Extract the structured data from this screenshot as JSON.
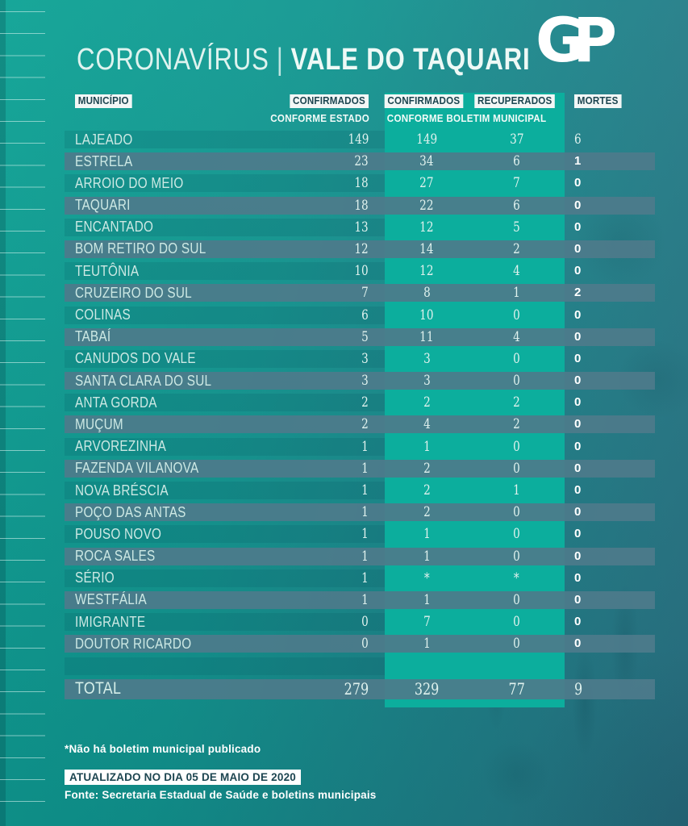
{
  "title": {
    "part1": "CORONAVÍRUS",
    "separator": "|",
    "part2": "VALE DO TAQUARI"
  },
  "logo": {
    "text": "GP"
  },
  "table": {
    "headers": {
      "municipio": "MUNICÍPIO",
      "estado_confirmados": "CONFIRMADOS",
      "estado_sub": "CONFORME ESTADO",
      "municipal_confirmados": "CONFIRMADOS",
      "municipal_recuperados": "RECUPERADOS",
      "municipal_sub": "CONFORME BOLETIM MUNICIPAL",
      "mortes": "MORTES"
    }
  },
  "chart_data": {
    "type": "table",
    "title": "CORONAVÍRUS | VALE DO TAQUARI",
    "columns": [
      "MUNICÍPIO",
      "CONFIRMADOS CONFORME ESTADO",
      "CONFIRMADOS CONFORME BOLETIM MUNICIPAL",
      "RECUPERADOS CONFORME BOLETIM MUNICIPAL",
      "MORTES"
    ],
    "rows": [
      {
        "municipio": "LAJEADO",
        "estado": "149",
        "confirmados": "149",
        "recuperados": "37",
        "mortes": "6",
        "mortes_style": "thin"
      },
      {
        "municipio": "ESTRELA",
        "estado": "23",
        "confirmados": "34",
        "recuperados": "6",
        "mortes": "1"
      },
      {
        "municipio": "ARROIO DO MEIO",
        "estado": "18",
        "confirmados": "27",
        "recuperados": "7",
        "mortes": "0"
      },
      {
        "municipio": "TAQUARI",
        "estado": "18",
        "confirmados": "22",
        "recuperados": "6",
        "mortes": "0"
      },
      {
        "municipio": "ENCANTADO",
        "estado": "13",
        "confirmados": "12",
        "recuperados": "5",
        "mortes": "0"
      },
      {
        "municipio": "BOM RETIRO DO SUL",
        "estado": "12",
        "confirmados": "14",
        "recuperados": "2",
        "mortes": "0"
      },
      {
        "municipio": "TEUTÔNIA",
        "estado": "10",
        "confirmados": "12",
        "recuperados": "4",
        "mortes": "0"
      },
      {
        "municipio": "CRUZEIRO DO SUL",
        "estado": "7",
        "confirmados": "8",
        "recuperados": "1",
        "mortes": "2"
      },
      {
        "municipio": "COLINAS",
        "estado": "6",
        "confirmados": "10",
        "recuperados": "0",
        "mortes": "0"
      },
      {
        "municipio": "TABAÍ",
        "estado": "5",
        "confirmados": "11",
        "recuperados": "4",
        "mortes": "0"
      },
      {
        "municipio": "CANUDOS DO VALE",
        "estado": "3",
        "confirmados": "3",
        "recuperados": "0",
        "mortes": "0"
      },
      {
        "municipio": "SANTA CLARA DO SUL",
        "estado": "3",
        "confirmados": "3",
        "recuperados": "0",
        "mortes": "0"
      },
      {
        "municipio": "ANTA GORDA",
        "estado": "2",
        "confirmados": "2",
        "recuperados": "2",
        "mortes": "0"
      },
      {
        "municipio": "MUÇUM",
        "estado": "2",
        "confirmados": "4",
        "recuperados": "2",
        "mortes": "0"
      },
      {
        "municipio": "ARVOREZINHA",
        "estado": "1",
        "confirmados": "1",
        "recuperados": "0",
        "mortes": "0"
      },
      {
        "municipio": "FAZENDA VILANOVA",
        "estado": "1",
        "confirmados": "2",
        "recuperados": "0",
        "mortes": "0"
      },
      {
        "municipio": "NOVA BRÉSCIA",
        "estado": "1",
        "confirmados": "2",
        "recuperados": "1",
        "mortes": "0"
      },
      {
        "municipio": "POÇO DAS ANTAS",
        "estado": "1",
        "confirmados": "2",
        "recuperados": "0",
        "mortes": "0"
      },
      {
        "municipio": "POUSO NOVO",
        "estado": "1",
        "confirmados": "1",
        "recuperados": "0",
        "mortes": "0"
      },
      {
        "municipio": "ROCA SALES",
        "estado": "1",
        "confirmados": "1",
        "recuperados": "0",
        "mortes": "0"
      },
      {
        "municipio": "SÉRIO",
        "estado": "1",
        "confirmados": "*",
        "recuperados": "*",
        "mortes": "0"
      },
      {
        "municipio": "WESTFÁLIA",
        "estado": "1",
        "confirmados": "1",
        "recuperados": "0",
        "mortes": "0"
      },
      {
        "municipio": "IMIGRANTE",
        "estado": "0",
        "confirmados": "7",
        "recuperados": "0",
        "mortes": "0"
      },
      {
        "municipio": "DOUTOR RICARDO",
        "estado": "0",
        "confirmados": "1",
        "recuperados": "0",
        "mortes": "0"
      }
    ],
    "total": {
      "label": "TOTAL",
      "estado": "279",
      "confirmados": "329",
      "recuperados": "77",
      "mortes": "9"
    }
  },
  "footer": {
    "footnote": "*Não há boletim municipal publicado",
    "updated": "ATUALIZADO NO DIA 05 DE MAIO DE 2020",
    "source": "Fonte: Secretaria Estadual de Saúde e boletins municipais"
  },
  "colors": {
    "background_left": "#0ba294",
    "background_right": "#2a7183",
    "row_stripe_gray": "#4d7b8b",
    "municipal_block_green": "#0cae9d",
    "header_box_bg": "#f2f7f6",
    "header_box_text": "#1c4550",
    "text_light": "#cde9e4",
    "mortes_text": "#ffffff"
  }
}
